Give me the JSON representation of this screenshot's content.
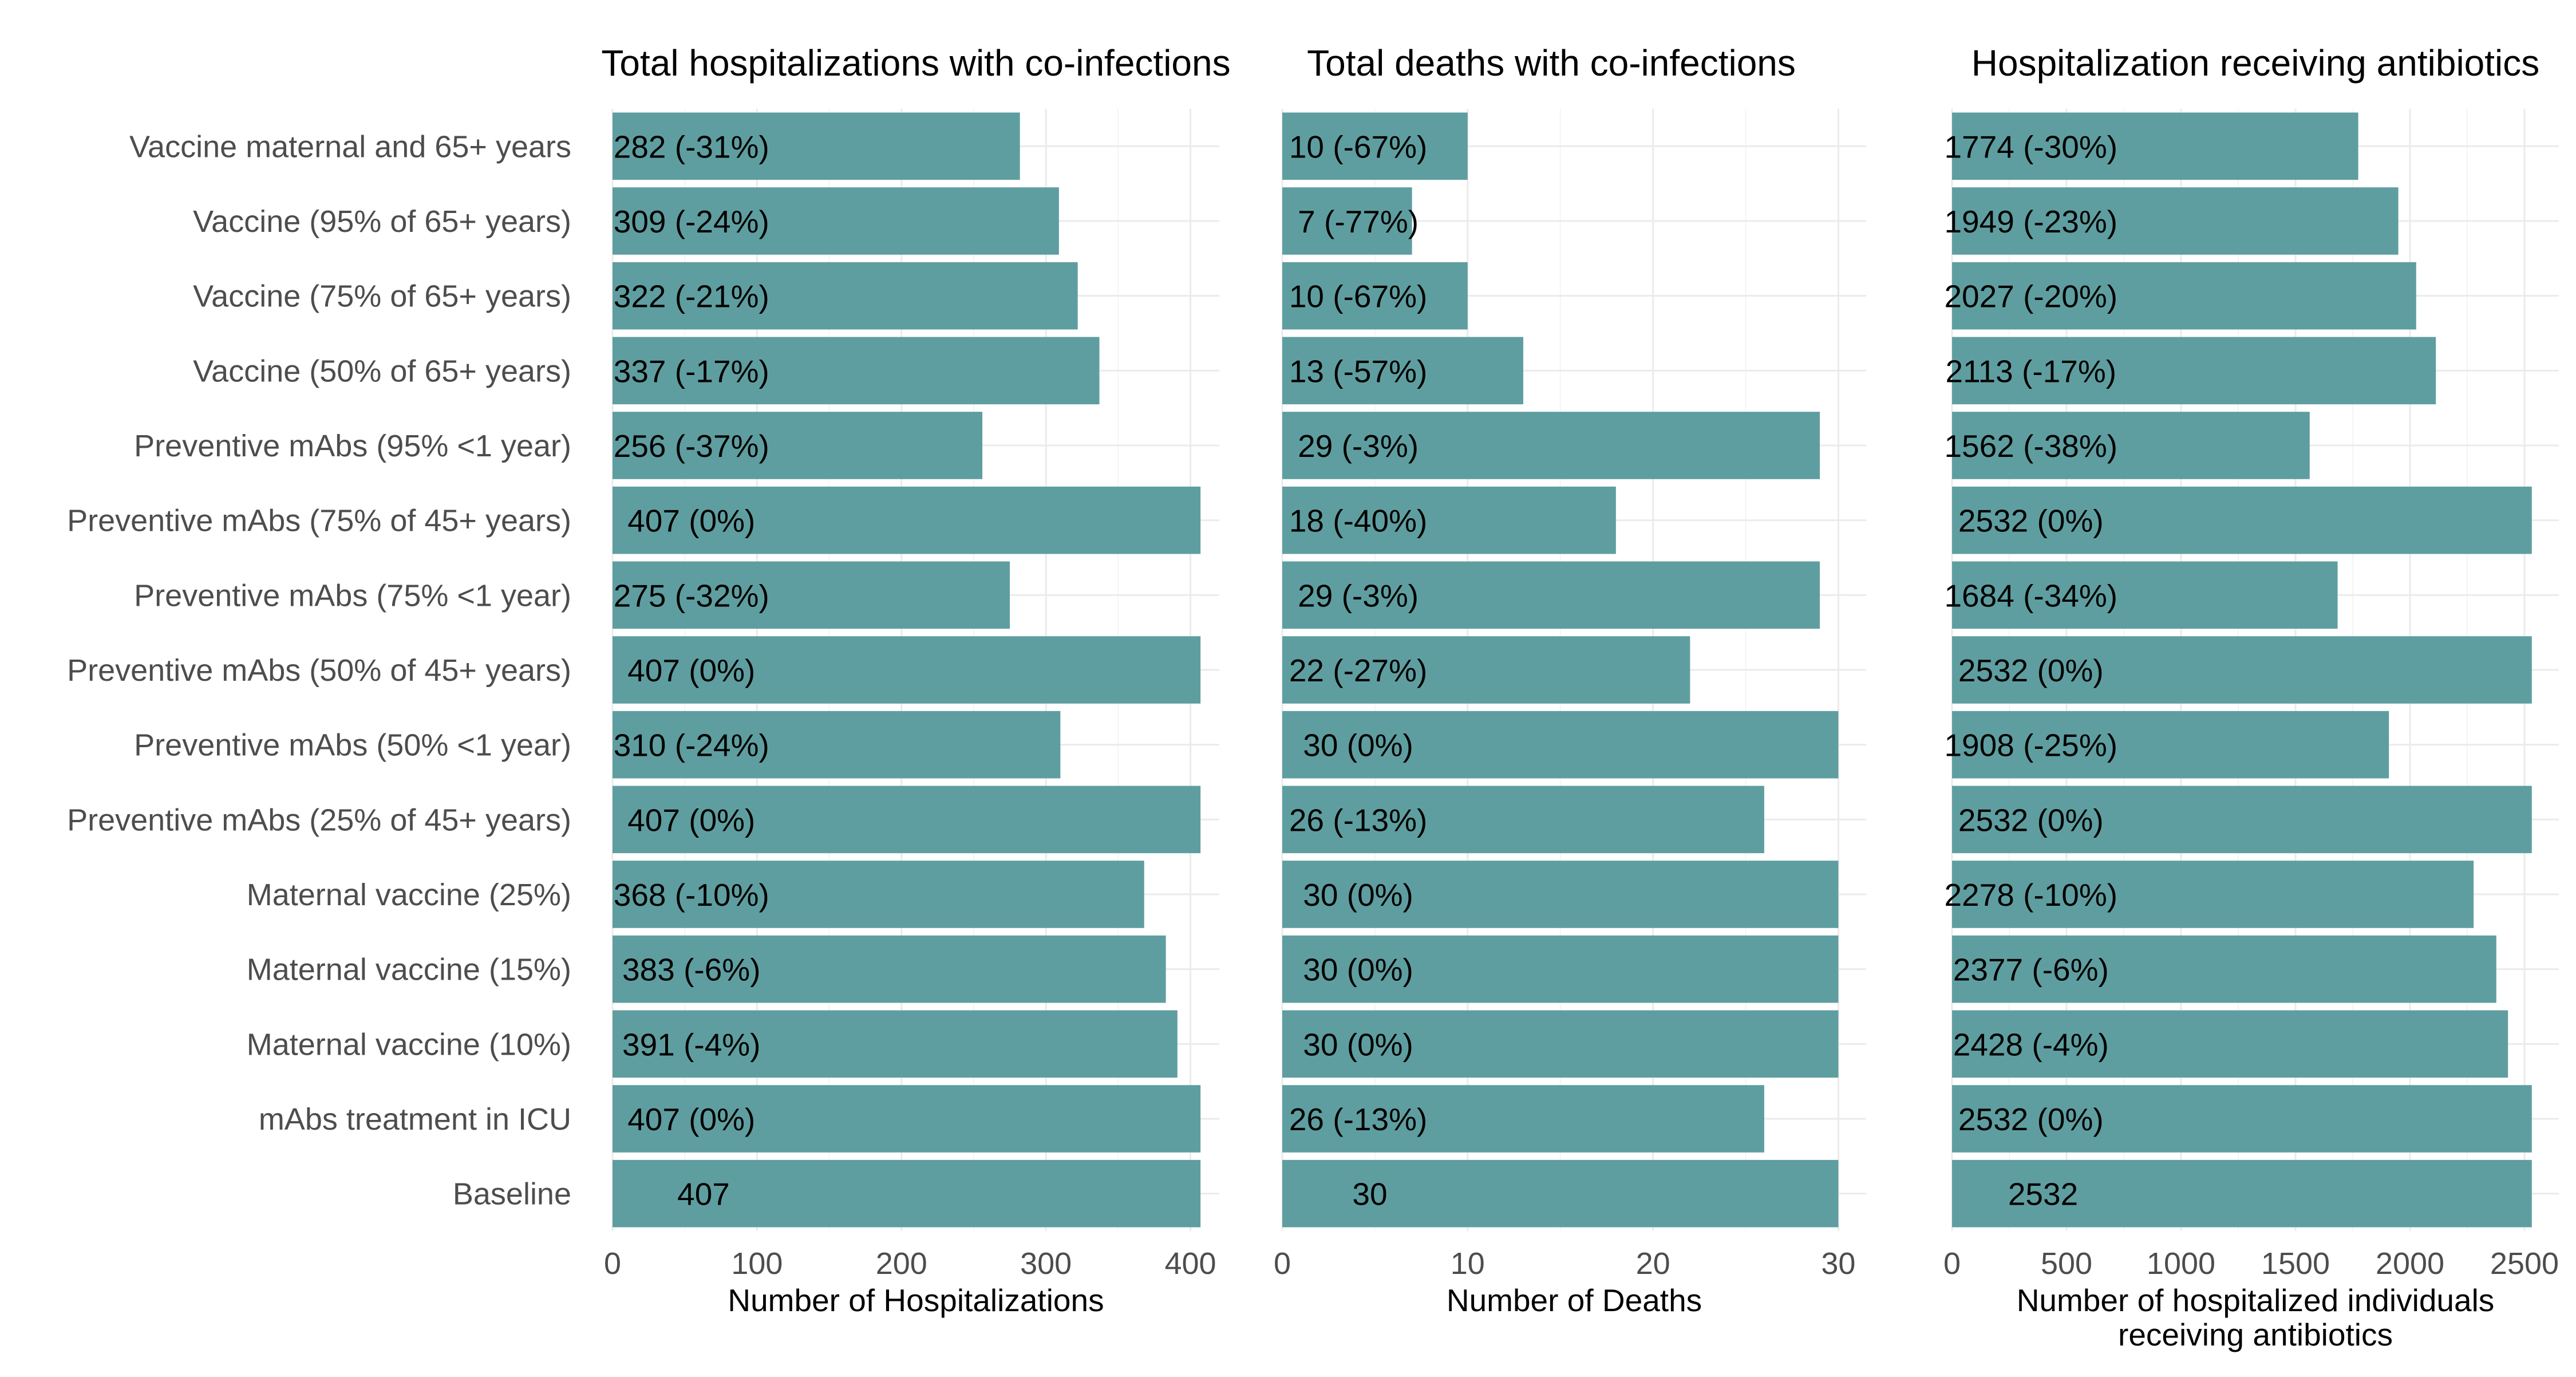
{
  "colors": {
    "bar": "#5f9ea0",
    "grid_major": "#ebebeb",
    "grid_minor": "#f4f4f4",
    "axis_text": "#4d4d4d",
    "label_text": "#000000"
  },
  "chart_data": [
    {
      "type": "bar",
      "orientation": "horizontal",
      "title": "Total hospitalizations with co-infections",
      "xlabel": "Number of Hospitalizations",
      "xlim": [
        0,
        420
      ],
      "ticks": [
        0,
        100,
        200,
        300,
        400
      ],
      "tick_labels": [
        "0",
        "100",
        "200",
        "300",
        "400"
      ],
      "grid": true,
      "categories": [
        "Vaccine maternal and 65+ years",
        "Vaccine (95% of 65+ years)",
        "Vaccine (75% of 65+ years)",
        "Vaccine (50% of 65+ years)",
        "Preventive mAbs (95% <1 year)",
        "Preventive mAbs (75% of 45+ years)",
        "Preventive mAbs (75% <1 year)",
        "Preventive mAbs (50% of 45+ years)",
        "Preventive mAbs (50% <1 year)",
        "Preventive mAbs (25% of 45+ years)",
        "Maternal vaccine (25%)",
        "Maternal vaccine (15%)",
        "Maternal vaccine (10%)",
        "mAbs treatment in ICU",
        "Baseline"
      ],
      "values": [
        282,
        309,
        322,
        337,
        256,
        407,
        275,
        407,
        310,
        407,
        368,
        383,
        391,
        407,
        407
      ],
      "labels": [
        "282 (-31%)",
        "309 (-24%)",
        "322 (-21%)",
        "337 (-17%)",
        "256 (-37%)",
        "407 (0%)",
        "275 (-32%)",
        "407 (0%)",
        "310 (-24%)",
        "407 (0%)",
        "368 (-10%)",
        "383 (-6%)",
        "391 (-4%)",
        "407 (0%)",
        "407"
      ]
    },
    {
      "type": "bar",
      "orientation": "horizontal",
      "title": "Total deaths with co-infections",
      "xlabel": "Number of Deaths",
      "xlim": [
        0,
        31.5
      ],
      "ticks": [
        0,
        10,
        20,
        30
      ],
      "tick_labels": [
        "0",
        "10",
        "20",
        "30"
      ],
      "grid": true,
      "categories": [
        "Vaccine maternal and 65+ years",
        "Vaccine (95% of 65+ years)",
        "Vaccine (75% of 65+ years)",
        "Vaccine (50% of 65+ years)",
        "Preventive mAbs (95% <1 year)",
        "Preventive mAbs (75% of 45+ years)",
        "Preventive mAbs (75% <1 year)",
        "Preventive mAbs (50% of 45+ years)",
        "Preventive mAbs (50% <1 year)",
        "Preventive mAbs (25% of 45+ years)",
        "Maternal vaccine (25%)",
        "Maternal vaccine (15%)",
        "Maternal vaccine (10%)",
        "mAbs treatment in ICU",
        "Baseline"
      ],
      "values": [
        10,
        7,
        10,
        13,
        29,
        18,
        29,
        22,
        30,
        26,
        30,
        30,
        30,
        26,
        30
      ],
      "labels": [
        "10 (-67%)",
        "7 (-77%)",
        "10 (-67%)",
        "13 (-57%)",
        "29 (-3%)",
        "18 (-40%)",
        "29 (-3%)",
        "22 (-27%)",
        "30 (0%)",
        "26 (-13%)",
        "30 (0%)",
        "30 (0%)",
        "30 (0%)",
        "26 (-13%)",
        "30"
      ]
    },
    {
      "type": "bar",
      "orientation": "horizontal",
      "title": "Hospitalization receiving antibiotics",
      "xlabel": "Number of hospitalized individuals receiving antibiotics",
      "xlabel_lines": [
        "Number of hospitalized individuals",
        "receiving antibiotics"
      ],
      "xlim": [
        0,
        2650
      ],
      "ticks": [
        0,
        500,
        1000,
        1500,
        2000,
        2500
      ],
      "tick_labels": [
        "0",
        "500",
        "1000",
        "1500",
        "2000",
        "2500"
      ],
      "grid": true,
      "categories": [
        "Vaccine maternal and 65+ years",
        "Vaccine (95% of 65+ years)",
        "Vaccine (75% of 65+ years)",
        "Vaccine (50% of 65+ years)",
        "Preventive mAbs (95% <1 year)",
        "Preventive mAbs (75% of 45+ years)",
        "Preventive mAbs (75% <1 year)",
        "Preventive mAbs (50% of 45+ years)",
        "Preventive mAbs (50% <1 year)",
        "Preventive mAbs (25% of 45+ years)",
        "Maternal vaccine (25%)",
        "Maternal vaccine (15%)",
        "Maternal vaccine (10%)",
        "mAbs treatment in ICU",
        "Baseline"
      ],
      "values": [
        1774,
        1949,
        2027,
        2113,
        1562,
        2532,
        1684,
        2532,
        1908,
        2532,
        2278,
        2377,
        2428,
        2532,
        2532
      ],
      "labels": [
        "1774 (-30%)",
        "1949 (-23%)",
        "2027 (-20%)",
        "2113 (-17%)",
        "1562 (-38%)",
        "2532 (0%)",
        "1684 (-34%)",
        "2532 (0%)",
        "1908 (-25%)",
        "2532 (0%)",
        "2278 (-10%)",
        "2377 (-6%)",
        "2428 (-4%)",
        "2532 (0%)",
        "2532"
      ]
    }
  ]
}
